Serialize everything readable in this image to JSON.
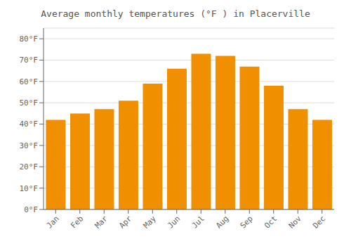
{
  "chart_data": {
    "type": "bar",
    "title": "Average monthly temperatures (°F ) in Placerville",
    "categories": [
      "Jan",
      "Feb",
      "Mar",
      "Apr",
      "May",
      "Jun",
      "Jul",
      "Aug",
      "Sep",
      "Oct",
      "Nov",
      "Dec"
    ],
    "values": [
      42,
      45,
      47,
      51,
      59,
      66,
      73,
      72,
      67,
      58,
      47,
      42
    ],
    "color": "#F09000",
    "ylim": [
      0,
      85
    ],
    "yticks": [
      {
        "value": 0,
        "label": "0°F"
      },
      {
        "value": 10,
        "label": "10°F"
      },
      {
        "value": 20,
        "label": "20°F"
      },
      {
        "value": 30,
        "label": "30°F"
      },
      {
        "value": 40,
        "label": "40°F"
      },
      {
        "value": 50,
        "label": "50°F"
      },
      {
        "value": 60,
        "label": "60°F"
      },
      {
        "value": 70,
        "label": "70°F"
      },
      {
        "value": 80,
        "label": "80°F"
      }
    ],
    "grid": true
  }
}
